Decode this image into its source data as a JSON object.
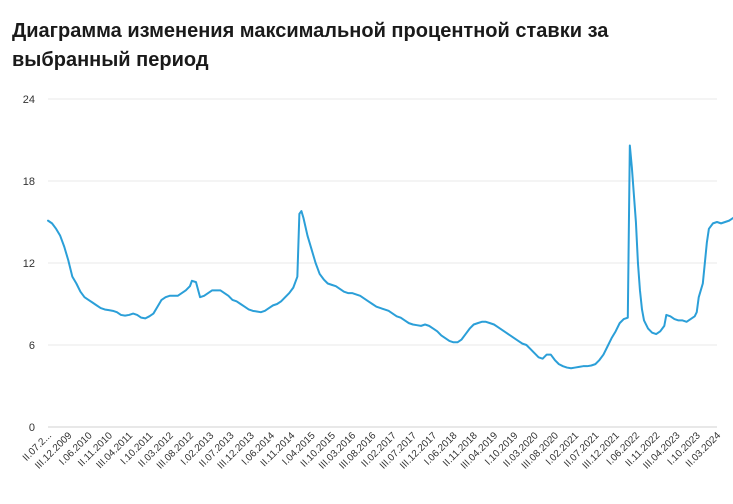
{
  "chart_data": {
    "type": "line",
    "title": "Диаграмма изменения максимальной процентной ставки за выбранный период",
    "xlabel": "",
    "ylabel": "",
    "ylim": [
      0,
      24
    ],
    "yticks": [
      0,
      6,
      12,
      18,
      24
    ],
    "grid": true,
    "x_tick_labels": [
      "II.07.2...",
      "III.12.2009",
      "I.06.2010",
      "II.11.2010",
      "III.04.2011",
      "I.10.2011",
      "II.03.2012",
      "III.08.2012",
      "I.02.2013",
      "II.07.2013",
      "III.12.2013",
      "I.06.2014",
      "II.11.2014",
      "I.04.2015",
      "II.10.2015",
      "III.03.2016",
      "III.08.2016",
      "II.02.2017",
      "III.07.2017",
      "III.12.2017",
      "I.06.2018",
      "II.11.2018",
      "III.04.2019",
      "I.10.2019",
      "II.03.2020",
      "III.08.2020",
      "I.02.2021",
      "II.07.2021",
      "III.12.2021",
      "I.06.2022",
      "II.11.2022",
      "III.04.2023",
      "I.10.2023",
      "II.03.2024"
    ],
    "series": [
      {
        "color": "#2b9fd8",
        "points": [
          [
            0,
            15.1
          ],
          [
            0.2,
            14.9
          ],
          [
            0.4,
            14.5
          ],
          [
            0.6,
            14.0
          ],
          [
            0.8,
            13.2
          ],
          [
            1.0,
            12.2
          ],
          [
            1.2,
            11.0
          ],
          [
            1.4,
            10.5
          ],
          [
            1.6,
            9.9
          ],
          [
            1.8,
            9.5
          ],
          [
            2.0,
            9.3
          ],
          [
            2.2,
            9.1
          ],
          [
            2.4,
            8.9
          ],
          [
            2.6,
            8.7
          ],
          [
            2.8,
            8.6
          ],
          [
            3.0,
            8.55
          ],
          [
            3.2,
            8.5
          ],
          [
            3.4,
            8.4
          ],
          [
            3.6,
            8.2
          ],
          [
            3.8,
            8.15
          ],
          [
            4.0,
            8.2
          ],
          [
            4.2,
            8.3
          ],
          [
            4.4,
            8.2
          ],
          [
            4.6,
            8.0
          ],
          [
            4.8,
            7.95
          ],
          [
            5.0,
            8.1
          ],
          [
            5.2,
            8.3
          ],
          [
            5.4,
            8.8
          ],
          [
            5.6,
            9.3
          ],
          [
            5.8,
            9.5
          ],
          [
            6.0,
            9.6
          ],
          [
            6.2,
            9.6
          ],
          [
            6.4,
            9.6
          ],
          [
            6.6,
            9.8
          ],
          [
            6.8,
            10.0
          ],
          [
            7.0,
            10.3
          ],
          [
            7.1,
            10.7
          ],
          [
            7.3,
            10.6
          ],
          [
            7.5,
            9.5
          ],
          [
            7.7,
            9.6
          ],
          [
            7.9,
            9.8
          ],
          [
            8.1,
            10.0
          ],
          [
            8.3,
            10.0
          ],
          [
            8.5,
            10.0
          ],
          [
            8.7,
            9.8
          ],
          [
            8.9,
            9.6
          ],
          [
            9.1,
            9.3
          ],
          [
            9.3,
            9.2
          ],
          [
            9.5,
            9.0
          ],
          [
            9.7,
            8.8
          ],
          [
            9.9,
            8.6
          ],
          [
            10.1,
            8.5
          ],
          [
            10.3,
            8.45
          ],
          [
            10.5,
            8.4
          ],
          [
            10.7,
            8.5
          ],
          [
            10.9,
            8.7
          ],
          [
            11.1,
            8.9
          ],
          [
            11.3,
            9.0
          ],
          [
            11.5,
            9.2
          ],
          [
            11.7,
            9.5
          ],
          [
            11.9,
            9.8
          ],
          [
            12.1,
            10.2
          ],
          [
            12.3,
            11.0
          ],
          [
            12.4,
            15.6
          ],
          [
            12.5,
            15.8
          ],
          [
            12.6,
            15.3
          ],
          [
            12.8,
            14.0
          ],
          [
            13.0,
            13.0
          ],
          [
            13.2,
            12.0
          ],
          [
            13.4,
            11.2
          ],
          [
            13.6,
            10.8
          ],
          [
            13.8,
            10.5
          ],
          [
            14.0,
            10.4
          ],
          [
            14.2,
            10.3
          ],
          [
            14.4,
            10.1
          ],
          [
            14.6,
            9.9
          ],
          [
            14.8,
            9.8
          ],
          [
            15.0,
            9.8
          ],
          [
            15.2,
            9.7
          ],
          [
            15.4,
            9.6
          ],
          [
            15.6,
            9.4
          ],
          [
            15.8,
            9.2
          ],
          [
            16.0,
            9.0
          ],
          [
            16.2,
            8.8
          ],
          [
            16.4,
            8.7
          ],
          [
            16.6,
            8.6
          ],
          [
            16.8,
            8.5
          ],
          [
            17.0,
            8.3
          ],
          [
            17.2,
            8.1
          ],
          [
            17.4,
            8.0
          ],
          [
            17.6,
            7.8
          ],
          [
            17.8,
            7.6
          ],
          [
            18.0,
            7.5
          ],
          [
            18.2,
            7.45
          ],
          [
            18.4,
            7.4
          ],
          [
            18.6,
            7.5
          ],
          [
            18.8,
            7.4
          ],
          [
            19.0,
            7.2
          ],
          [
            19.2,
            7.0
          ],
          [
            19.4,
            6.7
          ],
          [
            19.6,
            6.5
          ],
          [
            19.8,
            6.3
          ],
          [
            20.0,
            6.2
          ],
          [
            20.2,
            6.2
          ],
          [
            20.4,
            6.4
          ],
          [
            20.6,
            6.8
          ],
          [
            20.8,
            7.2
          ],
          [
            21.0,
            7.5
          ],
          [
            21.2,
            7.6
          ],
          [
            21.4,
            7.7
          ],
          [
            21.6,
            7.7
          ],
          [
            21.8,
            7.6
          ],
          [
            22.0,
            7.5
          ],
          [
            22.2,
            7.3
          ],
          [
            22.4,
            7.1
          ],
          [
            22.6,
            6.9
          ],
          [
            22.8,
            6.7
          ],
          [
            23.0,
            6.5
          ],
          [
            23.2,
            6.3
          ],
          [
            23.4,
            6.1
          ],
          [
            23.6,
            6.0
          ],
          [
            23.8,
            5.7
          ],
          [
            24.0,
            5.4
          ],
          [
            24.2,
            5.1
          ],
          [
            24.4,
            5.0
          ],
          [
            24.6,
            5.3
          ],
          [
            24.8,
            5.3
          ],
          [
            25.0,
            4.9
          ],
          [
            25.2,
            4.6
          ],
          [
            25.4,
            4.45
          ],
          [
            25.6,
            4.35
          ],
          [
            25.8,
            4.3
          ],
          [
            26.0,
            4.35
          ],
          [
            26.2,
            4.4
          ],
          [
            26.4,
            4.45
          ],
          [
            26.6,
            4.45
          ],
          [
            26.8,
            4.5
          ],
          [
            27.0,
            4.6
          ],
          [
            27.2,
            4.9
          ],
          [
            27.4,
            5.3
          ],
          [
            27.6,
            5.9
          ],
          [
            27.8,
            6.5
          ],
          [
            28.0,
            7.0
          ],
          [
            28.2,
            7.6
          ],
          [
            28.4,
            7.9
          ],
          [
            28.6,
            8.0
          ],
          [
            28.7,
            20.6
          ],
          [
            28.8,
            19.0
          ],
          [
            29.0,
            15.0
          ],
          [
            29.1,
            12.0
          ],
          [
            29.2,
            10.0
          ],
          [
            29.3,
            8.6
          ],
          [
            29.4,
            7.8
          ],
          [
            29.6,
            7.2
          ],
          [
            29.8,
            6.9
          ],
          [
            30.0,
            6.8
          ],
          [
            30.2,
            7.0
          ],
          [
            30.4,
            7.4
          ],
          [
            30.5,
            8.2
          ],
          [
            30.7,
            8.1
          ],
          [
            30.9,
            7.9
          ],
          [
            31.1,
            7.8
          ],
          [
            31.3,
            7.8
          ],
          [
            31.5,
            7.7
          ],
          [
            31.7,
            7.9
          ],
          [
            31.9,
            8.1
          ],
          [
            32.0,
            8.4
          ],
          [
            32.1,
            9.5
          ],
          [
            32.2,
            10.0
          ],
          [
            32.3,
            10.5
          ],
          [
            32.4,
            12.0
          ],
          [
            32.5,
            13.5
          ],
          [
            32.6,
            14.5
          ],
          [
            32.8,
            14.9
          ],
          [
            33.0,
            15.0
          ],
          [
            33.2,
            14.9
          ],
          [
            33.4,
            15.0
          ],
          [
            33.6,
            15.1
          ],
          [
            33.8,
            15.3
          ]
        ]
      }
    ]
  }
}
